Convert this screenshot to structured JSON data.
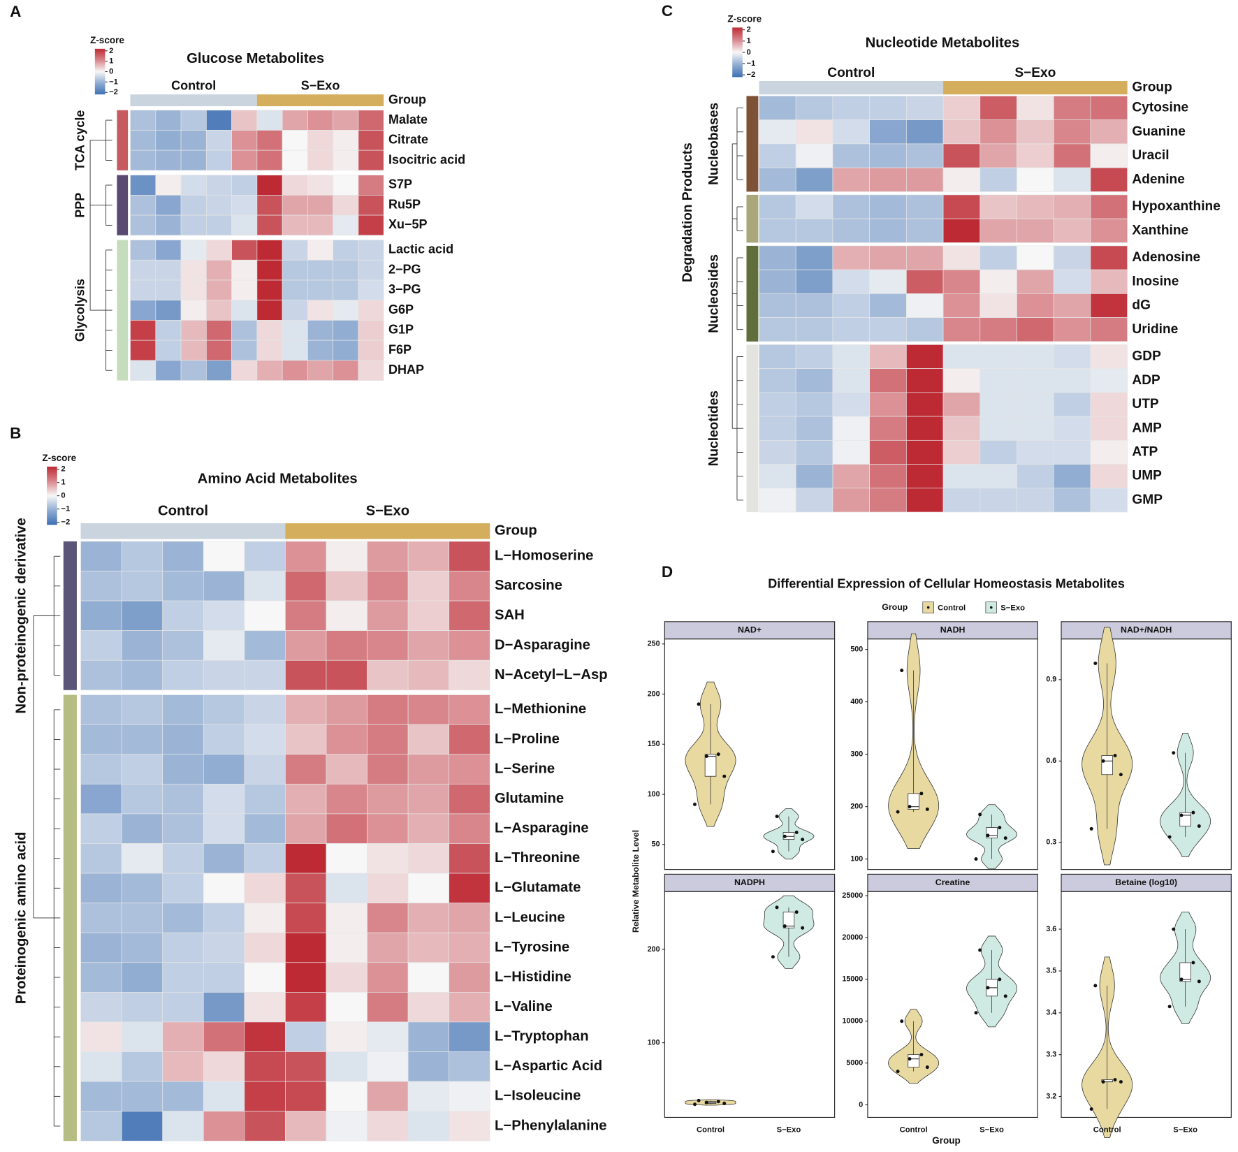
{
  "chart_data": [
    {
      "type": "heatmap",
      "panel": "A",
      "title": "Glucose Metabolites",
      "legend_title": "Z-score",
      "zlim": [
        -2.2,
        2.2
      ],
      "zticks": [
        {
          "value": -2,
          "label": "−2"
        },
        {
          "value": -1,
          "label": "−1"
        },
        0,
        1,
        2
      ],
      "group_label": "Group",
      "groups": [
        {
          "name": "Control",
          "color": "#c9d4de"
        },
        {
          "name": "S−Exo",
          "color": "#d4ae5c"
        }
      ],
      "row_groups": [
        {
          "name": "TCA cycle",
          "color": "#c75a5f",
          "rows": [
            "Malate",
            "Citrate",
            "Isocitric acid"
          ],
          "values": [
            [
              -0.8,
              -1,
              -0.7,
              -1.8,
              0.5,
              -0.3,
              0.8,
              1,
              0.8,
              1.4
            ],
            [
              -0.9,
              -1.1,
              -1,
              -0.5,
              1,
              1.3,
              0,
              0.3,
              0.1,
              1.6
            ],
            [
              -0.9,
              -1,
              -1,
              -0.6,
              1,
              1.3,
              0,
              0.3,
              0.1,
              1.6
            ]
          ]
        },
        {
          "name": "PPP",
          "color": "#5a4a72",
          "rows": [
            "S7P",
            "Ru5P",
            "Xu−5P"
          ],
          "values": [
            [
              -1.5,
              0.1,
              -0.4,
              -0.5,
              -0.6,
              2,
              0.3,
              0.2,
              0,
              1.2
            ],
            [
              -0.8,
              -1.2,
              -0.6,
              -0.5,
              -0.4,
              1.6,
              0.8,
              0.8,
              0.3,
              1.6
            ],
            [
              -0.8,
              -1,
              -0.6,
              -0.6,
              -0.3,
              1.6,
              0.6,
              0.6,
              -0.2,
              1.8
            ]
          ]
        },
        {
          "name": "Glycolysis",
          "color": "#c5ddbc",
          "rows": [
            "Lactic acid",
            "2−PG",
            "3−PG",
            "G6P",
            "G1P",
            "F6P",
            "DHAP"
          ],
          "values": [
            [
              -0.8,
              -1.2,
              -0.2,
              0.3,
              1.6,
              2,
              -0.5,
              0.1,
              -0.6,
              -0.5
            ],
            [
              -0.5,
              -0.5,
              0.2,
              0.7,
              0.1,
              2.2,
              -0.7,
              -0.7,
              -0.7,
              -0.5
            ],
            [
              -0.5,
              -0.5,
              0.2,
              0.7,
              0.1,
              2.2,
              -0.7,
              -0.7,
              -0.7,
              -0.4
            ],
            [
              -1.2,
              -1.4,
              0.1,
              0.5,
              -0.3,
              2.2,
              -0.5,
              0.2,
              -0.2,
              0.3
            ],
            [
              1.8,
              -0.6,
              0.6,
              1.4,
              -0.8,
              0.3,
              -0.3,
              -1,
              -1.1,
              0.4
            ],
            [
              1.8,
              -0.6,
              0.6,
              1.4,
              -0.8,
              0.3,
              -0.3,
              -1,
              -1.1,
              0.4
            ],
            [
              -0.3,
              -1.2,
              -0.8,
              -1.3,
              0.3,
              0.7,
              1,
              0.8,
              1,
              0.3
            ]
          ]
        }
      ]
    },
    {
      "type": "heatmap",
      "panel": "B",
      "title": "Amino Acid Metabolites",
      "legend_title": "Z-score",
      "zlim": [
        -2.2,
        2.2
      ],
      "zticks": [
        {
          "value": -2,
          "label": "−2"
        },
        {
          "value": -1,
          "label": "−1"
        },
        0,
        1,
        2
      ],
      "group_label": "Group",
      "groups": [
        {
          "name": "Control",
          "color": "#c9d4de"
        },
        {
          "name": "S−Exo",
          "color": "#d4ae5c"
        }
      ],
      "row_groups": [
        {
          "name": "Non-proteinogenic derivative",
          "color": "#5b5577",
          "rows": [
            "L−Homoserine",
            "Sarcosine",
            "SAH",
            "D−Asparagine",
            "N−Acetyl−L−Asp"
          ],
          "values": [
            [
              -1,
              -0.7,
              -1,
              0,
              -0.6,
              1,
              0.1,
              0.9,
              0.7,
              1.6
            ],
            [
              -0.8,
              -0.7,
              -0.9,
              -1,
              -0.3,
              1.4,
              0.5,
              1.1,
              0.4,
              1.1
            ],
            [
              -1.1,
              -1.3,
              -0.6,
              -0.4,
              0,
              1.2,
              0.1,
              0.9,
              0.4,
              1.4
            ],
            [
              -0.6,
              -1,
              -0.8,
              -0.2,
              -0.9,
              0.9,
              1.2,
              1.1,
              0.8,
              1
            ],
            [
              -0.8,
              -0.9,
              -0.6,
              -0.5,
              -0.5,
              1.6,
              1.6,
              0.5,
              0.6,
              0.3
            ]
          ]
        },
        {
          "name": "Proteinogenic amino acid",
          "color": "#b5bd83",
          "rows": [
            "L−Methionine",
            "L−Proline",
            "L−Serine",
            "Glutamine",
            "L−Asparagine",
            "L−Threonine",
            "L−Glutamate",
            "L−Leucine",
            "L−Tyrosine",
            "L−Histidine",
            "L−Valine",
            "L−Tryptophan",
            "L−Aspartic Acid",
            "L−Isoleucine",
            "L−Phenylalanine"
          ],
          "values": [
            [
              -0.8,
              -0.7,
              -0.9,
              -0.7,
              -0.5,
              0.7,
              0.9,
              1.2,
              1.1,
              1
            ],
            [
              -0.9,
              -0.9,
              -1,
              -0.6,
              -0.4,
              0.5,
              1,
              1.2,
              0.5,
              1.4
            ],
            [
              -0.7,
              -0.6,
              -1,
              -1.1,
              -0.5,
              1.2,
              0.6,
              1.2,
              0.9,
              1
            ],
            [
              -1.2,
              -0.7,
              -0.8,
              -0.4,
              -0.7,
              0.7,
              1.1,
              0.9,
              0.8,
              1.4
            ],
            [
              -0.6,
              -1,
              -0.8,
              -0.4,
              -0.9,
              0.8,
              1.3,
              1,
              0.7,
              1.1
            ],
            [
              -0.7,
              -0.2,
              -0.6,
              -1,
              -0.6,
              2.2,
              0,
              0.2,
              0.3,
              1.6
            ],
            [
              -1,
              -0.9,
              -0.6,
              0,
              0.3,
              1.6,
              -0.3,
              0.3,
              0,
              1.9
            ],
            [
              -0.8,
              -0.8,
              -0.9,
              -0.6,
              0.1,
              1.7,
              0.1,
              1.1,
              0.7,
              0.8
            ],
            [
              -1,
              -0.9,
              -0.6,
              -0.5,
              0.3,
              2,
              0.1,
              0.8,
              0.6,
              0.7
            ],
            [
              -0.9,
              -1.1,
              -0.6,
              -0.6,
              0,
              2.1,
              0.3,
              1,
              0,
              0.9
            ],
            [
              -0.5,
              -0.6,
              -0.6,
              -1.4,
              0.2,
              1.8,
              0,
              1.2,
              0.3,
              0.7
            ],
            [
              0.2,
              -0.3,
              0.7,
              1.3,
              1.9,
              -0.6,
              0.1,
              -0.2,
              -1,
              -1.4
            ],
            [
              -0.3,
              -0.7,
              0.6,
              0.3,
              1.7,
              1.6,
              -0.3,
              -0.1,
              -1,
              -0.8
            ],
            [
              -0.9,
              -0.9,
              -0.9,
              -0.3,
              1.8,
              1.7,
              0,
              0.8,
              -0.2,
              -0.1
            ],
            [
              -0.7,
              -1.8,
              -0.3,
              1,
              1.6,
              0.6,
              -0.1,
              0.3,
              -0.3,
              0.2
            ]
          ]
        }
      ]
    },
    {
      "type": "heatmap",
      "panel": "C",
      "title": "Nucleotide Metabolites",
      "legend_title": "Z-score",
      "zlim": [
        -2.2,
        2.2
      ],
      "zticks": [
        {
          "value": -2,
          "label": "−2"
        },
        {
          "value": -1,
          "label": "−1"
        },
        0,
        1,
        2
      ],
      "group_label": "Group",
      "supergroup_label": "Degradation Products",
      "groups": [
        {
          "name": "Control",
          "color": "#c9d4de"
        },
        {
          "name": "S−Exo",
          "color": "#d4ae5c"
        }
      ],
      "row_groups": [
        {
          "name": "Nucleobases",
          "color": "#7e5236",
          "rows": [
            "Cytosine",
            "Guanine",
            "Uracil",
            "Adenine"
          ],
          "values": [
            [
              -0.9,
              -0.7,
              -0.6,
              -0.6,
              -0.5,
              0.4,
              1.5,
              0.2,
              1.2,
              1.3
            ],
            [
              -0.2,
              0.2,
              -0.4,
              -1.2,
              -1.4,
              0.5,
              1,
              0.5,
              1.1,
              0.7
            ],
            [
              -0.6,
              -0.1,
              -0.8,
              -0.9,
              -0.8,
              1.6,
              0.8,
              0.4,
              1.3,
              0.1
            ],
            [
              -0.9,
              -1.3,
              0.8,
              0.9,
              0.9,
              0.1,
              -0.6,
              0,
              -0.3,
              1.7
            ]
          ]
        },
        {
          "name": null,
          "color": "#aaa87b",
          "rows": [
            "Hypoxanthine",
            "Xanthine"
          ],
          "values": [
            [
              -0.7,
              -0.4,
              -0.8,
              -0.9,
              -0.8,
              1.7,
              0.5,
              0.6,
              0.7,
              1.3
            ],
            [
              -0.7,
              -0.7,
              -0.8,
              -0.9,
              -0.8,
              2.1,
              0.8,
              0.8,
              0.6,
              1
            ]
          ]
        },
        {
          "name": "Nucleosides",
          "color": "#5f6e3b",
          "rows": [
            "Adenosine",
            "Inosine",
            "dG",
            "Uridine"
          ],
          "values": [
            [
              -1,
              -1.3,
              0.7,
              0.8,
              0.8,
              0.2,
              -0.6,
              0,
              -0.5,
              1.7
            ],
            [
              -1,
              -1.3,
              -0.4,
              -0.2,
              1.5,
              1.1,
              0.1,
              0.8,
              -0.4,
              0.6
            ],
            [
              -0.8,
              -0.8,
              -0.6,
              -0.9,
              -0.1,
              1,
              0.2,
              1,
              0.8,
              1.9
            ],
            [
              -0.7,
              -0.7,
              -0.6,
              -0.6,
              -0.7,
              1.1,
              1.2,
              1.4,
              1,
              1.2
            ]
          ]
        },
        {
          "name": "Nucleotides",
          "color": "#e3e3df",
          "rows": [
            "GDP",
            "ADP",
            "UTP",
            "AMP",
            "ATP",
            "UMP",
            "GMP"
          ],
          "values": [
            [
              -0.7,
              -0.6,
              -0.3,
              0.6,
              2.1,
              -0.3,
              -0.3,
              -0.3,
              -0.4,
              0.2
            ],
            [
              -0.7,
              -0.9,
              -0.3,
              1.3,
              2.1,
              0.1,
              -0.3,
              -0.3,
              -0.3,
              -0.2
            ],
            [
              -0.6,
              -0.7,
              -0.4,
              1,
              2.1,
              0.8,
              -0.3,
              -0.3,
              -0.6,
              0.3
            ],
            [
              -0.6,
              -0.8,
              -0.1,
              1.2,
              2.1,
              0.5,
              -0.3,
              -0.3,
              -0.4,
              0.3
            ],
            [
              -0.5,
              -0.7,
              -0.1,
              1.5,
              2.1,
              0.4,
              -0.6,
              -0.4,
              -0.4,
              0.1
            ],
            [
              -0.3,
              -1,
              0.8,
              1.3,
              2.1,
              -0.3,
              -0.3,
              -0.6,
              -1.1,
              0.3
            ],
            [
              -0.1,
              -0.5,
              0.9,
              1.2,
              2.1,
              -0.5,
              -0.5,
              -0.5,
              -0.8,
              -0.4
            ]
          ]
        }
      ]
    },
    {
      "type": "violin",
      "panel": "D",
      "title": "Differential Expression of Cellular Homeostasis Metabolites",
      "legend_title": "Group",
      "xlabel": "Group",
      "ylabel": "Relative Metabolite Level",
      "categories": [
        "Control",
        "S−Exo"
      ],
      "series": [
        {
          "name": "Control",
          "color": "#e8d9a0"
        },
        {
          "name": "S−Exo",
          "color": "#cfeae2"
        }
      ],
      "facets": [
        {
          "title": "NAD+",
          "ylim": [
            25,
            255
          ],
          "yticks": [
            50,
            100,
            150,
            200,
            250
          ],
          "values": [
            [
              190,
              140,
              138,
              118,
              90
            ],
            [
              78,
              62,
              58,
              55,
              43
            ]
          ]
        },
        {
          "title": "NADH",
          "ylim": [
            80,
            520
          ],
          "yticks": [
            100,
            200,
            300,
            400,
            500
          ],
          "values": [
            [
              460,
              225,
              200,
              195,
              190
            ],
            [
              185,
              160,
              145,
              140,
              100
            ]
          ]
        },
        {
          "title": "NAD+/NADH",
          "ylim": [
            0.2,
            1.05
          ],
          "yticks": [
            0.3,
            0.6,
            0.9
          ],
          "values": [
            [
              0.96,
              0.62,
              0.6,
              0.55,
              0.35
            ],
            [
              0.63,
              0.41,
              0.4,
              0.36,
              0.32
            ]
          ]
        },
        {
          "title": "NADPH",
          "ylim": [
            20,
            262
          ],
          "yticks": [
            100,
            200
          ],
          "values": [
            [
              38,
              37,
              36,
              35,
              34
            ],
            [
              245,
              240,
              225,
              223,
              192
            ]
          ]
        },
        {
          "title": "Creatine",
          "ylim": [
            -1500,
            25500
          ],
          "yticks": [
            0,
            5000,
            10000,
            15000,
            20000,
            25000
          ],
          "values": [
            [
              10000,
              6000,
              5500,
              4500,
              4000
            ],
            [
              18500,
              15000,
              14000,
              13000,
              11000
            ]
          ]
        },
        {
          "title": "Betaine (log10)",
          "ylim": [
            3.15,
            3.69
          ],
          "yticks": [
            3.2,
            3.3,
            3.4,
            3.5,
            3.6
          ],
          "values": [
            [
              3.465,
              3.24,
              3.235,
              3.235,
              3.17
            ],
            [
              3.6,
              3.52,
              3.48,
              3.475,
              3.415
            ]
          ]
        }
      ]
    }
  ]
}
